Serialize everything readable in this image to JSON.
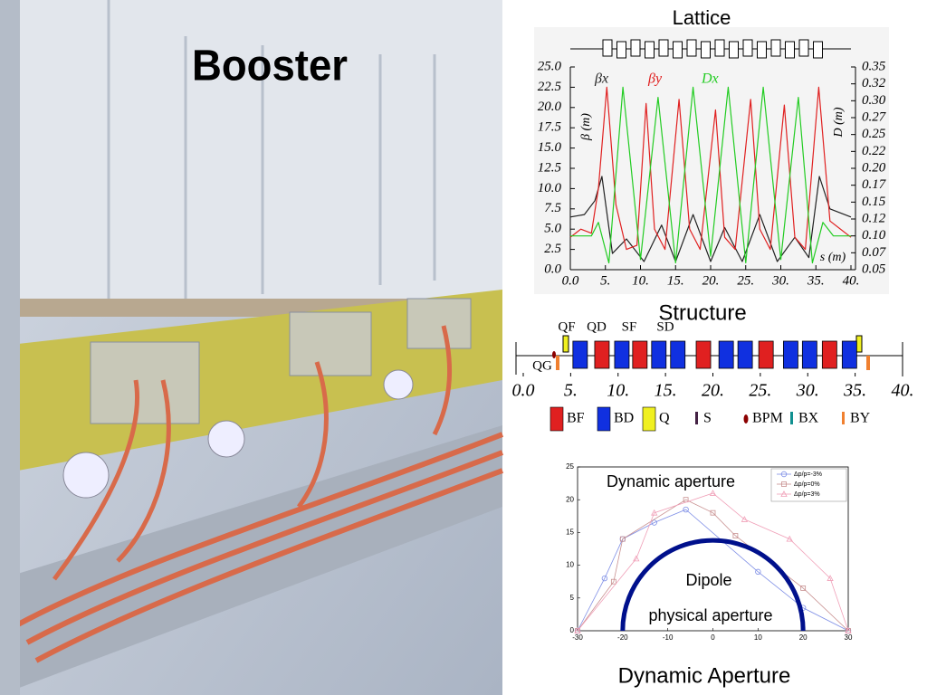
{
  "title": "Booster",
  "chart_data": [
    {
      "type": "line",
      "title": "Lattice",
      "xlabel": "s (m)",
      "ylabel": "β (m)",
      "y2label": "D (m)",
      "xlim": [
        0,
        40
      ],
      "xticks": [
        {
          "value": 0,
          "label": "0.0"
        },
        {
          "value": 5,
          "label": "5."
        },
        {
          "value": 10,
          "label": "10."
        },
        {
          "value": 15,
          "label": "15."
        },
        {
          "value": 20,
          "label": "20."
        },
        {
          "value": 25,
          "label": "25."
        },
        {
          "value": 30,
          "label": "30."
        },
        {
          "value": 35,
          "label": "35."
        },
        {
          "value": 40,
          "label": "40."
        }
      ],
      "ylim": [
        0,
        25
      ],
      "yticks": [
        {
          "value": 0,
          "label": "0.0"
        },
        {
          "value": 2.5,
          "label": "2.5"
        },
        {
          "value": 5,
          "label": "5.0"
        },
        {
          "value": 7.5,
          "label": "7.5"
        },
        {
          "value": 10,
          "label": "10.0"
        },
        {
          "value": 12.5,
          "label": "12.5"
        },
        {
          "value": 15,
          "label": "15.0"
        },
        {
          "value": 17.5,
          "label": "17.5"
        },
        {
          "value": 20,
          "label": "20.0"
        },
        {
          "value": 22.5,
          "label": "22.5"
        },
        {
          "value": 25,
          "label": "25.0"
        }
      ],
      "y2lim": [
        0.05,
        0.35
      ],
      "y2ticks": [
        {
          "value": 0.05,
          "label": "0.05"
        },
        {
          "value": 0.075,
          "label": "0.07"
        },
        {
          "value": 0.1,
          "label": "0.10"
        },
        {
          "value": 0.125,
          "label": "0.12"
        },
        {
          "value": 0.15,
          "label": "0.15"
        },
        {
          "value": 0.175,
          "label": "0.17"
        },
        {
          "value": 0.2,
          "label": "0.20"
        },
        {
          "value": 0.225,
          "label": "0.22"
        },
        {
          "value": 0.25,
          "label": "0.25"
        },
        {
          "value": 0.275,
          "label": "0.27"
        },
        {
          "value": 0.3,
          "label": "0.30"
        },
        {
          "value": 0.325,
          "label": "0.32"
        },
        {
          "value": 0.35,
          "label": "0.35"
        }
      ],
      "series": [
        {
          "name": "βx",
          "color": "#222222",
          "x": [
            0,
            2,
            3.5,
            4.5,
            6,
            8,
            10.5,
            13,
            15,
            17.5,
            20,
            22,
            24.5,
            27,
            29.5,
            32,
            34,
            35.5,
            37,
            40
          ],
          "values": [
            6.5,
            6.8,
            8.5,
            11.5,
            2,
            3.8,
            1,
            5.5,
            1,
            6.8,
            1,
            5.2,
            1,
            6.8,
            1,
            4,
            1.5,
            11.5,
            7.5,
            6.5
          ]
        },
        {
          "name": "βy",
          "color": "#e02020",
          "x": [
            0,
            1.5,
            3,
            4,
            5.2,
            6.5,
            8,
            9.5,
            10.8,
            12,
            13.5,
            15.5,
            17,
            18.5,
            20.7,
            22,
            23.5,
            25.7,
            27,
            28.5,
            30.5,
            32,
            33.5,
            35.4,
            37,
            40
          ],
          "values": [
            4,
            5,
            4.5,
            10,
            22.5,
            8,
            2.5,
            3,
            20.5,
            5,
            2.5,
            21,
            5,
            2.5,
            19.7,
            4,
            2.5,
            21,
            5,
            2.5,
            20.3,
            4,
            2.5,
            22.5,
            6,
            4
          ]
        },
        {
          "name": "Dx",
          "color": "#22cc22",
          "axis": "y2",
          "x": [
            0,
            3,
            4,
            5.5,
            7.5,
            10,
            12.5,
            15,
            17.5,
            20,
            22.5,
            25,
            27.5,
            30,
            32.5,
            34.5,
            36,
            37.5,
            40
          ],
          "values": [
            0.1,
            0.1,
            0.12,
            0.06,
            0.32,
            0.065,
            0.305,
            0.06,
            0.32,
            0.07,
            0.32,
            0.06,
            0.32,
            0.065,
            0.305,
            0.06,
            0.12,
            0.1,
            0.1
          ]
        }
      ]
    },
    {
      "type": "line",
      "title": "Dynamic aperture",
      "xlim": [
        -30,
        30
      ],
      "xticks": [
        -30,
        -20,
        -10,
        0,
        10,
        20,
        30
      ],
      "ylim": [
        0,
        25
      ],
      "yticks": [
        0,
        5,
        10,
        15,
        20,
        25
      ],
      "series": [
        {
          "name": "Δp/p=-3%",
          "color": "#7f8fe6",
          "marker": "circle",
          "x": [
            -30,
            -24,
            -20,
            -13,
            -6,
            10,
            20,
            30
          ],
          "values": [
            0,
            8,
            14,
            16.5,
            18.5,
            9,
            3.5,
            0
          ]
        },
        {
          "name": "Δp/p=0%",
          "color": "#c89090",
          "marker": "square",
          "x": [
            -30,
            -22,
            -20,
            -6,
            0,
            5,
            20,
            30
          ],
          "values": [
            0,
            7.5,
            14,
            20,
            18,
            14.5,
            6.5,
            0
          ]
        },
        {
          "name": "Δp/p=3%",
          "color": "#f0a0b8",
          "marker": "triangle",
          "x": [
            -30,
            -17,
            -13,
            0,
            7,
            17,
            26,
            30
          ],
          "values": [
            0,
            11,
            18,
            21,
            17,
            14,
            8,
            0
          ]
        }
      ],
      "dipole_aperture": {
        "labels": [
          "Dipole",
          "physical aperture"
        ],
        "half_width": 20,
        "height": 13.8,
        "color": "#00108c"
      }
    }
  ],
  "structure": {
    "title": "Structure",
    "labels": [
      "QF",
      "QD",
      "SF",
      "SD",
      "QG"
    ],
    "xlim": [
      0,
      40
    ],
    "xticks": [
      {
        "value": 0,
        "label": "0.0"
      },
      {
        "value": 5,
        "label": "5."
      },
      {
        "value": 10,
        "label": "10."
      },
      {
        "value": 15,
        "label": "15."
      },
      {
        "value": 20,
        "label": "20."
      },
      {
        "value": 25,
        "label": "25."
      },
      {
        "value": 30,
        "label": "30."
      },
      {
        "value": 35,
        "label": "35."
      },
      {
        "value": 40,
        "label": "40."
      }
    ],
    "bf_positions": [
      8.3,
      12.3,
      19.0,
      25.6,
      32.3
    ],
    "bd_positions": [
      6.0,
      10.4,
      14.3,
      16.3,
      21.4,
      23.4,
      28.2,
      30.2,
      34.4
    ],
    "legend": [
      {
        "label": "BF",
        "color": "#e02020",
        "shape": "block"
      },
      {
        "label": "BD",
        "color": "#1030e0",
        "shape": "block"
      },
      {
        "label": "Q",
        "color": "#f0f020",
        "shape": "block"
      },
      {
        "label": "S",
        "color": "#442244",
        "shape": "thin"
      },
      {
        "label": "BPM",
        "color": "#8b0000",
        "shape": "dot"
      },
      {
        "label": "BX",
        "color": "#109090",
        "shape": "thin"
      },
      {
        "label": "BY",
        "color": "#f08030",
        "shape": "thin"
      }
    ]
  },
  "caption": "Dynamic Aperture"
}
